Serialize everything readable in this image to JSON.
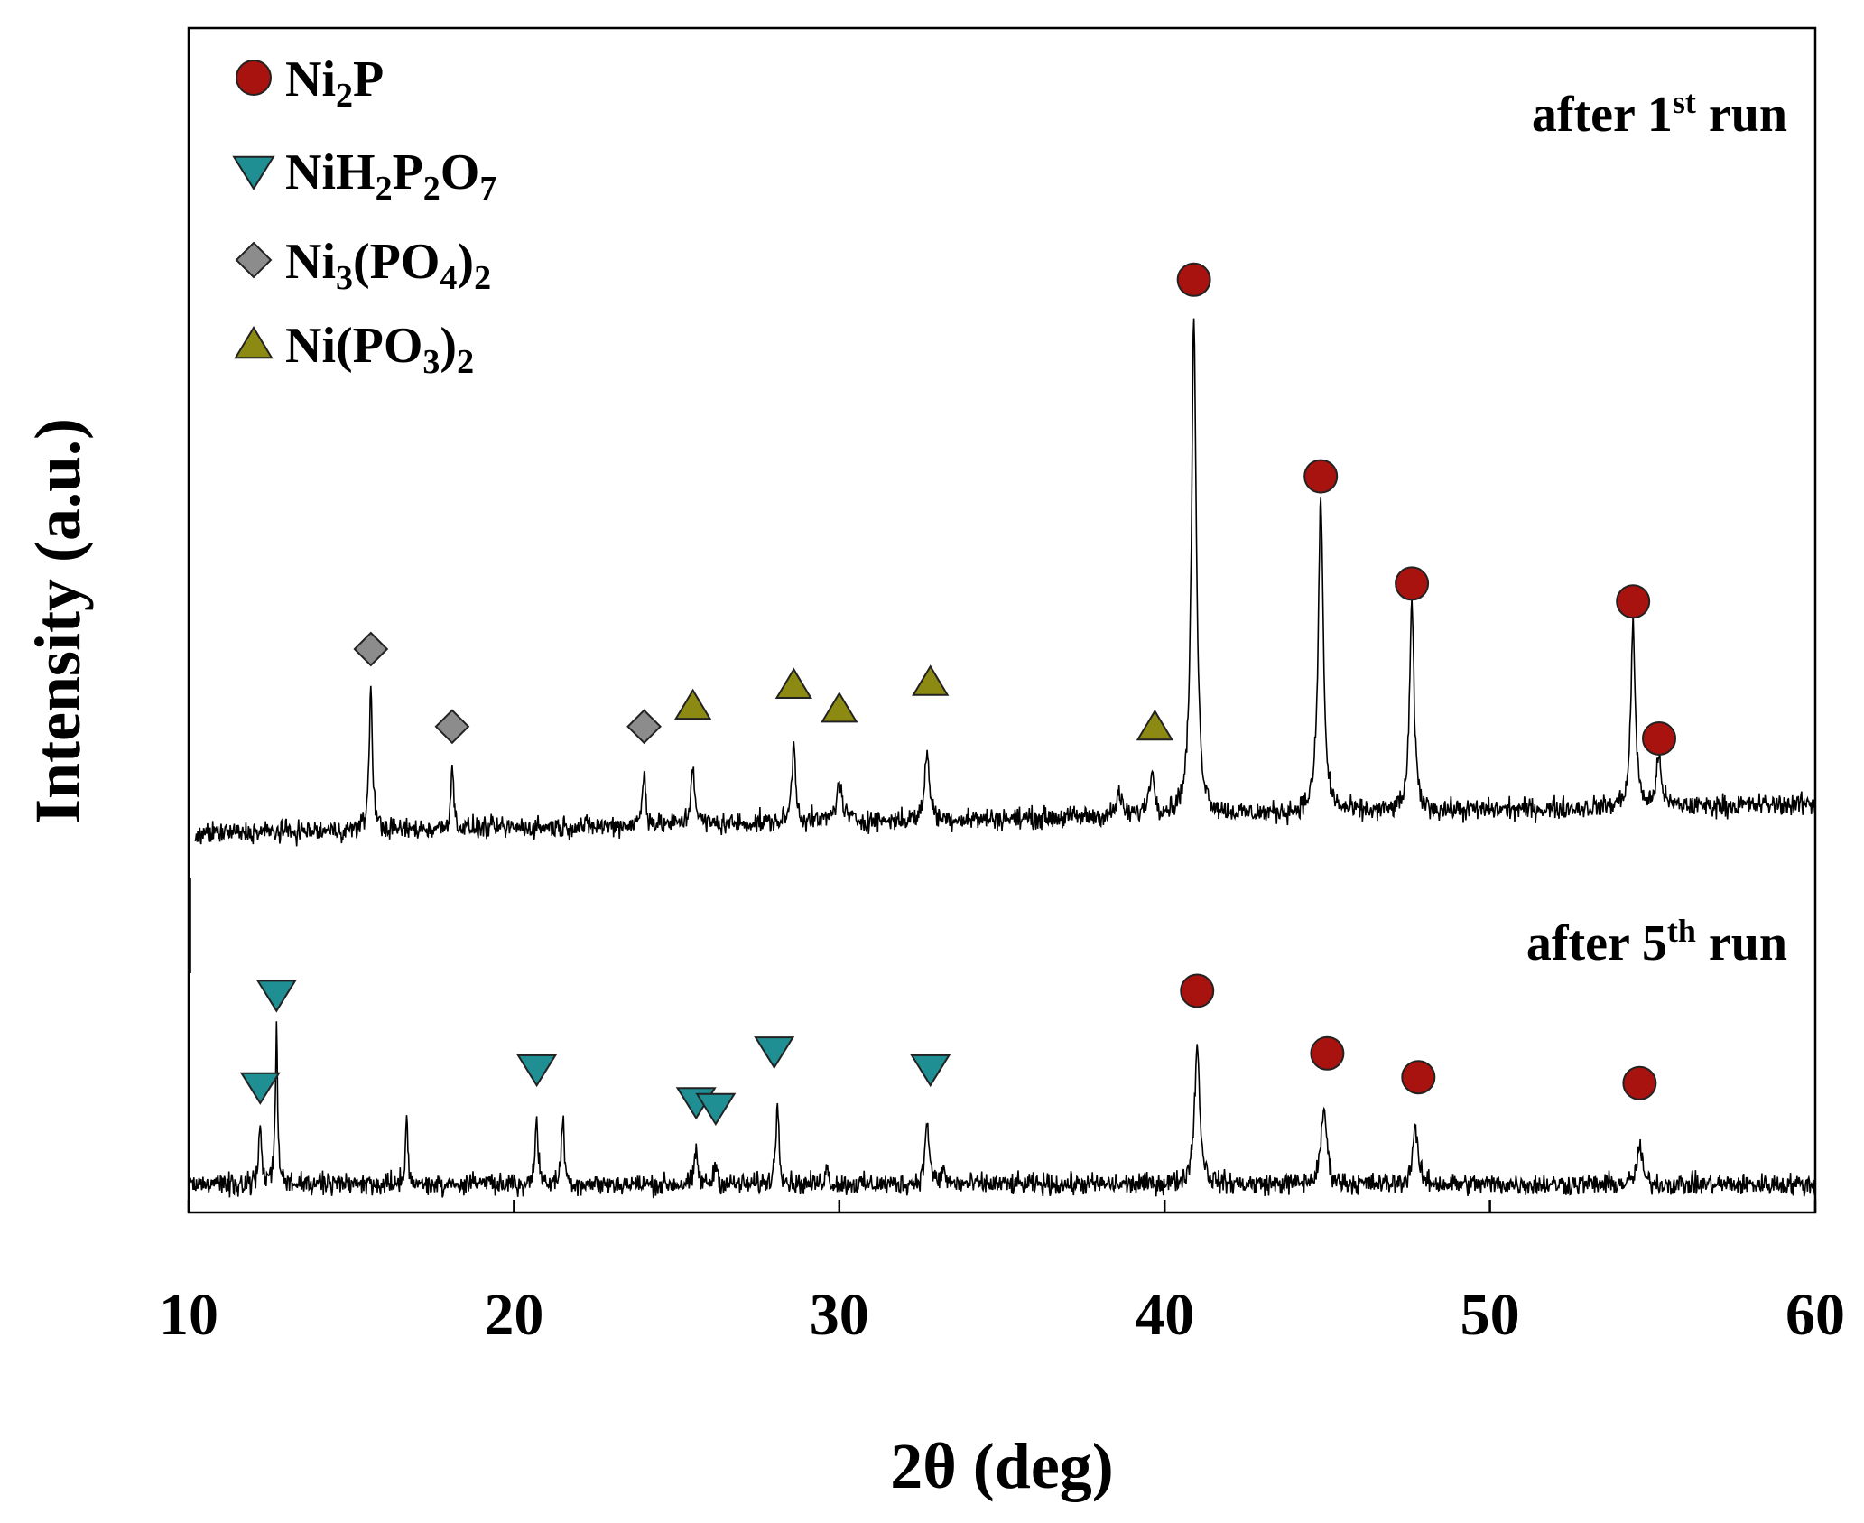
{
  "chart_data": {
    "type": "line",
    "title": "",
    "xlabel": "2θ (deg)",
    "ylabel": "Intensity (a.u.)",
    "xlim": [
      10,
      60
    ],
    "x_ticks": [
      10,
      20,
      30,
      40,
      50,
      60
    ],
    "y_ticks": [],
    "legend_position": "top-left",
    "legend": [
      {
        "id": "ni2p",
        "marker": "circle",
        "base": "Ni",
        "parts": [
          {
            "t": "2",
            "s": "sub"
          },
          {
            "t": "P",
            "s": ""
          }
        ],
        "color": "#a8120f"
      },
      {
        "id": "nih2p2o7",
        "marker": "triangle-down",
        "base": "NiH",
        "parts": [
          {
            "t": "2",
            "s": "sub"
          },
          {
            "t": "P",
            "s": ""
          },
          {
            "t": "2",
            "s": "sub"
          },
          {
            "t": "O",
            "s": ""
          },
          {
            "t": "7",
            "s": "sub"
          }
        ],
        "color": "#1f8f93"
      },
      {
        "id": "ni3po42",
        "marker": "diamond",
        "base": "Ni",
        "parts": [
          {
            "t": "3",
            "s": "sub"
          },
          {
            "t": "(PO",
            "s": ""
          },
          {
            "t": "4",
            "s": "sub"
          },
          {
            "t": ")",
            "s": ""
          },
          {
            "t": "2",
            "s": "sub"
          }
        ],
        "color": "#8c8c8c"
      },
      {
        "id": "nipo32",
        "marker": "triangle-up",
        "base": "Ni(PO",
        "parts": [
          {
            "t": "3",
            "s": "sub"
          },
          {
            "t": ")",
            "s": ""
          },
          {
            "t": "2",
            "s": "sub"
          }
        ],
        "color": "#8c8a12"
      }
    ],
    "series": [
      {
        "name": "after 1st run",
        "label": {
          "main": "after 1",
          "sup": "st",
          "tail": " run"
        },
        "baseline": 18,
        "peaks": [
          [
            15.6,
            48,
            0.06
          ],
          [
            18.1,
            22,
            0.05
          ],
          [
            24.0,
            18,
            0.06
          ],
          [
            25.5,
            20,
            0.07
          ],
          [
            28.6,
            26,
            0.07
          ],
          [
            30.0,
            12,
            0.12
          ],
          [
            32.7,
            24,
            0.08
          ],
          [
            38.6,
            8,
            0.08
          ],
          [
            39.6,
            14,
            0.1
          ],
          [
            40.9,
            165,
            0.09
          ],
          [
            44.8,
            106,
            0.09
          ],
          [
            47.6,
            70,
            0.08
          ],
          [
            54.4,
            62,
            0.08
          ],
          [
            55.2,
            18,
            0.08
          ]
        ]
      },
      {
        "name": "after 5th run",
        "label": {
          "main": "after 5",
          "sup": "th",
          "tail": " run"
        },
        "baseline": 0,
        "peaks": [
          [
            12.2,
            18,
            0.05
          ],
          [
            12.7,
            52,
            0.04
          ],
          [
            16.7,
            25,
            0.04
          ],
          [
            20.7,
            23,
            0.05
          ],
          [
            21.5,
            23,
            0.05
          ],
          [
            25.6,
            12,
            0.05
          ],
          [
            26.2,
            8,
            0.05
          ],
          [
            28.1,
            28,
            0.06
          ],
          [
            29.6,
            6,
            0.06
          ],
          [
            32.7,
            22,
            0.07
          ],
          [
            33.2,
            5,
            0.06
          ],
          [
            41.0,
            46,
            0.1
          ],
          [
            44.9,
            26,
            0.1
          ],
          [
            47.7,
            20,
            0.09
          ],
          [
            54.6,
            13,
            0.09
          ]
        ]
      }
    ],
    "markers": [
      {
        "phase": "ni3po42",
        "x": 15.6,
        "series": 0,
        "y": 70
      },
      {
        "phase": "ni3po42",
        "x": 18.1,
        "series": 0,
        "y": 44
      },
      {
        "phase": "ni3po42",
        "x": 24.0,
        "series": 0,
        "y": 44
      },
      {
        "phase": "nipo32",
        "x": 25.5,
        "series": 0,
        "y": 51
      },
      {
        "phase": "nipo32",
        "x": 28.6,
        "series": 0,
        "y": 58
      },
      {
        "phase": "nipo32",
        "x": 30.0,
        "series": 0,
        "y": 50
      },
      {
        "phase": "nipo32",
        "x": 32.8,
        "series": 0,
        "y": 59
      },
      {
        "phase": "nipo32",
        "x": 39.7,
        "series": 0,
        "y": 44
      },
      {
        "phase": "ni2p",
        "x": 40.9,
        "series": 0,
        "y": 194
      },
      {
        "phase": "ni2p",
        "x": 44.8,
        "series": 0,
        "y": 128
      },
      {
        "phase": "ni2p",
        "x": 47.6,
        "series": 0,
        "y": 92
      },
      {
        "phase": "ni2p",
        "x": 54.4,
        "series": 0,
        "y": 86
      },
      {
        "phase": "ni2p",
        "x": 55.2,
        "series": 0,
        "y": 40
      },
      {
        "phase": "nih2p2o7",
        "x": 12.2,
        "series": 1,
        "y": 33
      },
      {
        "phase": "nih2p2o7",
        "x": 12.7,
        "series": 1,
        "y": 64
      },
      {
        "phase": "nih2p2o7",
        "x": 20.7,
        "series": 1,
        "y": 39
      },
      {
        "phase": "nih2p2o7",
        "x": 25.6,
        "series": 1,
        "y": 28
      },
      {
        "phase": "nih2p2o7",
        "x": 26.2,
        "series": 1,
        "y": 26
      },
      {
        "phase": "nih2p2o7",
        "x": 28.0,
        "series": 1,
        "y": 45
      },
      {
        "phase": "nih2p2o7",
        "x": 32.8,
        "series": 1,
        "y": 39
      },
      {
        "phase": "ni2p",
        "x": 41.0,
        "series": 1,
        "y": 65
      },
      {
        "phase": "ni2p",
        "x": 45.0,
        "series": 1,
        "y": 44
      },
      {
        "phase": "ni2p",
        "x": 47.8,
        "series": 1,
        "y": 36
      },
      {
        "phase": "ni2p",
        "x": 54.6,
        "series": 1,
        "y": 34
      }
    ]
  }
}
